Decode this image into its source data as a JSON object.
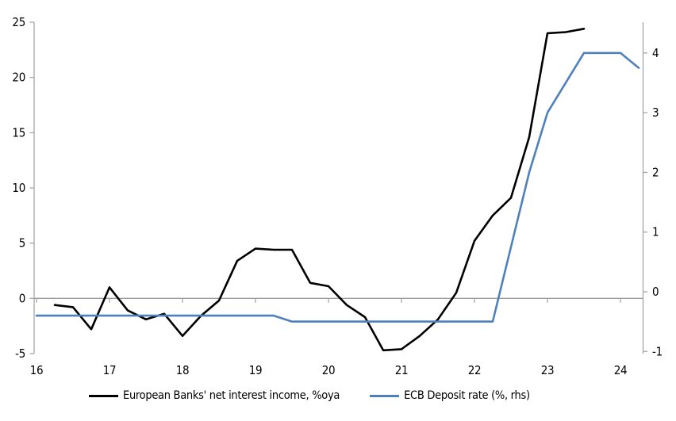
{
  "chart_data": {
    "type": "line",
    "title": "",
    "grid": "zero-line-only",
    "legend_position": "bottom",
    "x_axis": {
      "ticks": [
        "16",
        "17",
        "18",
        "19",
        "20",
        "21",
        "22",
        "23",
        "24"
      ],
      "tick_values": [
        16,
        17,
        18,
        19,
        20,
        21,
        22,
        23,
        24
      ],
      "range": [
        16,
        24.32
      ]
    },
    "left_axis": {
      "ticks": [
        "25",
        "20",
        "15",
        "10",
        "5",
        "0",
        "-5"
      ],
      "tick_values": [
        25,
        20,
        15,
        10,
        5,
        0,
        -5
      ],
      "range": [
        -5,
        25
      ]
    },
    "right_axis": {
      "ticks": [
        "4",
        "3",
        "2",
        "1",
        "0",
        "-1"
      ],
      "tick_values": [
        4,
        3,
        2,
        1,
        0,
        -1
      ],
      "range": [
        -1.05,
        4.5
      ]
    },
    "series": [
      {
        "name": "European Banks' net interest income, %oya",
        "axis": "left",
        "color": "#000000",
        "x": [
          16.25,
          16.5,
          16.75,
          17.0,
          17.25,
          17.5,
          17.75,
          18.0,
          18.25,
          18.5,
          18.75,
          19.0,
          19.25,
          19.5,
          19.75,
          20.0,
          20.25,
          20.5,
          20.75,
          21.0,
          21.25,
          21.5,
          21.75,
          22.0,
          22.25,
          22.5,
          22.75,
          23.0,
          23.25,
          23.5
        ],
        "values": [
          -0.6,
          -0.8,
          -2.8,
          1.0,
          -1.1,
          -1.9,
          -1.4,
          -3.4,
          -1.6,
          -0.2,
          3.4,
          4.5,
          4.4,
          4.4,
          1.4,
          1.1,
          -0.6,
          -1.7,
          -4.7,
          -4.6,
          -3.4,
          -1.9,
          0.5,
          5.2,
          7.5,
          9.1,
          14.6,
          24.0,
          24.1,
          24.4
        ]
      },
      {
        "name": "ECB Deposit rate (%, rhs)",
        "axis": "right",
        "color": "#4E81BC",
        "x": [
          16.0,
          19.25,
          19.5,
          22.25,
          22.5,
          22.75,
          23.0,
          23.25,
          23.5,
          24.0,
          24.25
        ],
        "values": [
          -0.4,
          -0.4,
          -0.5,
          -0.5,
          0.75,
          2.0,
          3.0,
          3.5,
          4.0,
          4.0,
          3.75
        ]
      }
    ],
    "colors": {
      "axis_line": "#A6A6A6",
      "zero_line": "#9D9D9D",
      "text": "#000000"
    }
  }
}
